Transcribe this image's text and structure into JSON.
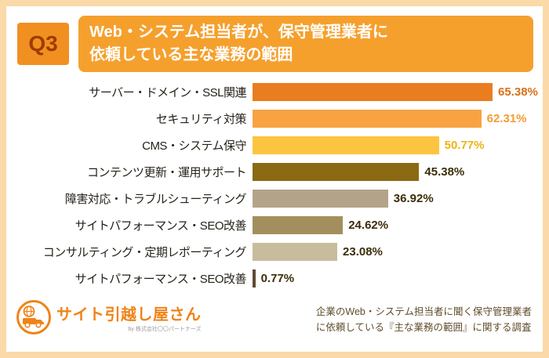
{
  "header": {
    "badge": "Q3",
    "title_line1": "Web・システム担当者が、保守管理業者に",
    "title_line2": "依頼している主な業務の範囲"
  },
  "chart_data": {
    "type": "bar",
    "orientation": "horizontal",
    "title": "Web・システム担当者が、保守管理業者に依頼している主な業務の範囲",
    "categories": [
      "サーバー・ドメイン・SSL関連",
      "セキュリティ対策",
      "CMS・システム保守",
      "コンテンツ更新・運用サポート",
      "障害対応・トラブルシューティング",
      "サイトパフォーマンス・SEO改善",
      "コンサルティング・定期レポーティング",
      "サイトパフォーマンス・SEO改善"
    ],
    "values": [
      65.38,
      62.31,
      50.77,
      45.38,
      36.92,
      24.62,
      23.08,
      0.77
    ],
    "value_labels": [
      "65.38%",
      "62.31%",
      "50.77%",
      "45.38%",
      "36.92%",
      "24.62%",
      "23.08%",
      "0.77%"
    ],
    "bar_colors": [
      "#e97d1f",
      "#f9a242",
      "#fcc53f",
      "#8a6a12",
      "#b3a489",
      "#a28f5d",
      "#c8bc9d",
      "#5f4b33"
    ],
    "value_label_colors": [
      "#d8701a",
      "#f49c33",
      "#edb414",
      "#3b2d08",
      "#3b2d08",
      "#3b2d08",
      "#3b2d08",
      "#3b2d08"
    ],
    "xlim": [
      0,
      70
    ],
    "grid": false,
    "legend": false
  },
  "footer": {
    "logo_text": "サイト引越し屋さん",
    "logo_subtext": "by 株式会社〇〇パートナーズ",
    "caption_line1": "企業のWeb・システム担当者に聞く保守管理業者",
    "caption_line2": "に依頼している『主な業務の範囲』に関する調査"
  },
  "colors": {
    "frame_border": "#fbd9a8",
    "badge_bg": "#f19021",
    "badge_text": "#9c3c00",
    "title_bg": "#f5a02d",
    "title_text": "#ffffff",
    "logo_orange": "#ef8318",
    "caption_text": "#5f4c2a"
  }
}
